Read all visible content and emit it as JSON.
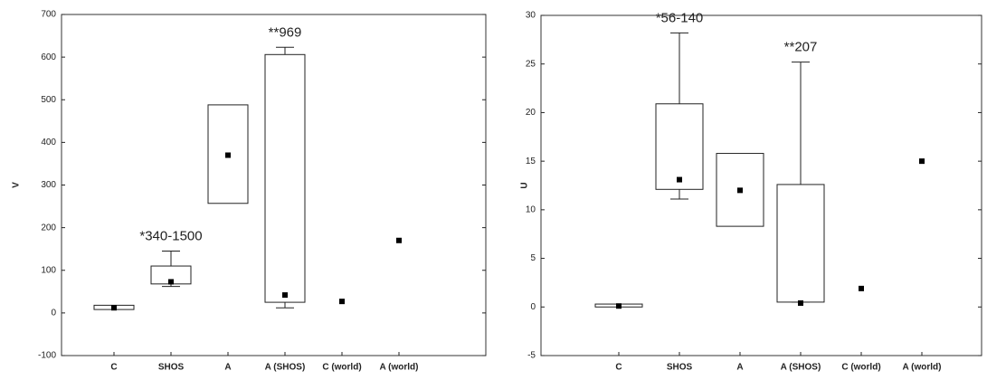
{
  "chart_data": [
    {
      "type": "box",
      "ylabel": "V",
      "categories": [
        "C",
        "SHOS",
        "A",
        "A (SHOS)",
        "C (world)",
        "A (world)"
      ],
      "q1": [
        8,
        68,
        257,
        25,
        null,
        null
      ],
      "q3": [
        18,
        110,
        488,
        606,
        null,
        null
      ],
      "whisker_low": [
        null,
        62,
        null,
        12,
        null,
        null
      ],
      "whisker_high": [
        null,
        145,
        null,
        623,
        null,
        null
      ],
      "points": [
        12,
        73,
        370,
        42,
        27,
        170
      ],
      "annotations": [
        null,
        "*340-1500",
        null,
        "**969",
        null,
        null
      ],
      "ylim": [
        -100,
        700
      ],
      "yticks": [
        -100,
        0,
        100,
        200,
        300,
        400,
        500,
        600,
        700
      ]
    },
    {
      "type": "box",
      "ylabel": "U",
      "categories": [
        "C",
        "SHOS",
        "A",
        "A (SHOS)",
        "C (world)",
        "A (world)"
      ],
      "q1": [
        0,
        12.1,
        8.3,
        0.5,
        null,
        null
      ],
      "q3": [
        0.3,
        20.9,
        15.8,
        12.6,
        null,
        null
      ],
      "whisker_low": [
        null,
        11.1,
        null,
        0.5,
        null,
        null
      ],
      "whisker_high": [
        null,
        28.2,
        null,
        25.2,
        null,
        null
      ],
      "points": [
        0.1,
        13.1,
        12,
        0.4,
        1.9,
        15
      ],
      "annotations": [
        null,
        "*56-140",
        null,
        "**207",
        null,
        null
      ],
      "ylim": [
        -5,
        30
      ],
      "yticks": [
        -5,
        0,
        5,
        10,
        15,
        20,
        25,
        30
      ]
    }
  ]
}
